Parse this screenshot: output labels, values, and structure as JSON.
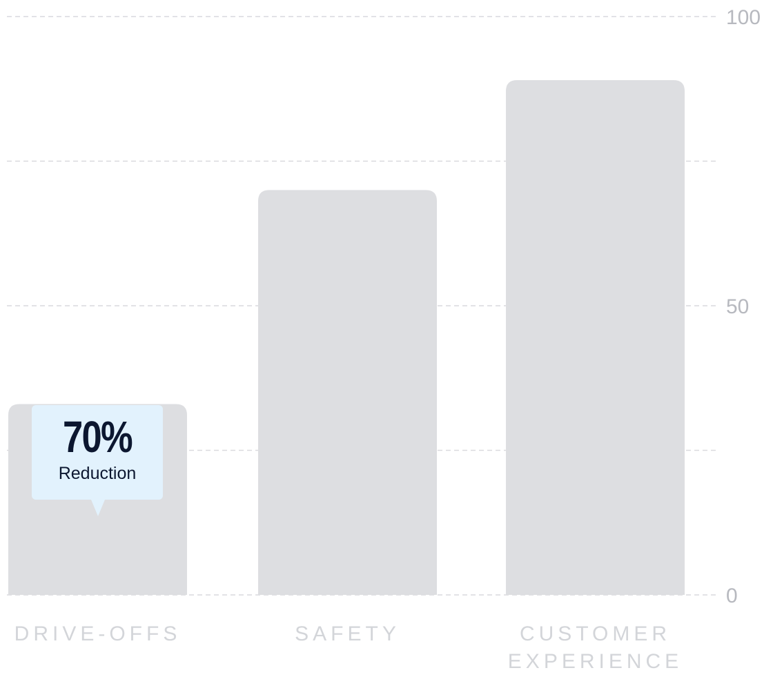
{
  "chart_data": {
    "type": "bar",
    "categories": [
      [
        "DRIVE-OFFS"
      ],
      [
        "SAFETY"
      ],
      [
        "CUSTOMER",
        "EXPERIENCE"
      ]
    ],
    "values": [
      33,
      70,
      89
    ],
    "ylim": [
      0,
      100
    ],
    "y_ticks": [
      0,
      25,
      50,
      75,
      100
    ],
    "y_tick_labels": [
      "0",
      "",
      "50",
      "",
      "100"
    ],
    "grid": true,
    "y_axis_side": "right",
    "bar_color": "#dddee1",
    "grid_color": "#d9d9de",
    "tick_label_color": "#b7b9bf",
    "category_label_color": "#d3d5d9"
  },
  "callout": {
    "category": "DRIVE-OFFS",
    "value": "70%",
    "label": "Reduction",
    "background": "#e2f2fd",
    "text_color": "#0c1730"
  }
}
